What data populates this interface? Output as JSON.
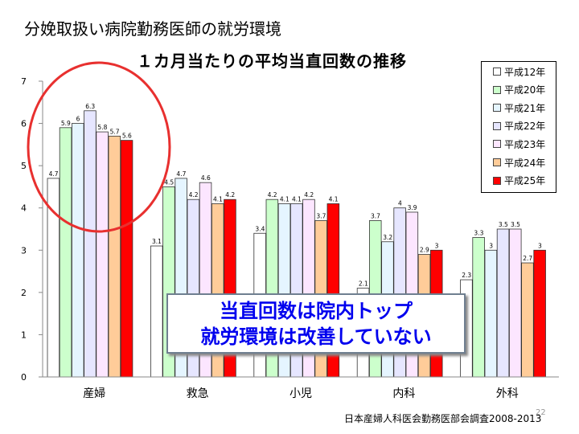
{
  "slide_title": "分娩取扱い病院勤務医師の就労環境",
  "source": "日本産婦人科医会勤務医部会調査2008-2013",
  "page_number": "22",
  "callout": {
    "line1": "当直回数は院内トップ",
    "line2": "就労環境は改善していない"
  },
  "chart_data": {
    "type": "bar",
    "title": "１カ月当たりの平均当直回数の推移",
    "xlabel": "",
    "ylabel": "",
    "ylim": [
      0,
      7
    ],
    "yticks": [
      0,
      1,
      2,
      3,
      4,
      5,
      6,
      7
    ],
    "grid": false,
    "legend_position": "top-right",
    "categories": [
      "産婦",
      "救急",
      "小児",
      "内科",
      "外科"
    ],
    "series": [
      {
        "name": "平成12年",
        "color": "#ffffff",
        "values": [
          4.7,
          3.1,
          3.4,
          2.1,
          2.3
        ]
      },
      {
        "name": "平成20年",
        "color": "#ccffcc",
        "values": [
          5.9,
          4.5,
          4.2,
          3.7,
          3.3
        ]
      },
      {
        "name": "平成21年",
        "color": "#e5f5ff",
        "values": [
          6.0,
          4.7,
          4.1,
          3.2,
          3.0
        ]
      },
      {
        "name": "平成22年",
        "color": "#e6e6ff",
        "values": [
          6.3,
          4.2,
          4.1,
          4.0,
          3.5
        ]
      },
      {
        "name": "平成23年",
        "color": "#fce6ff",
        "values": [
          5.8,
          4.6,
          4.2,
          3.9,
          3.5
        ]
      },
      {
        "name": "平成24年",
        "color": "#ffcc99",
        "values": [
          5.7,
          4.1,
          3.7,
          2.9,
          2.7
        ]
      },
      {
        "name": "平成25年",
        "color": "#ff0000",
        "values": [
          5.6,
          4.2,
          4.1,
          3.0,
          3.0
        ]
      }
    ],
    "data_labels": [
      [
        "4.7",
        "5.9",
        "6",
        "6.3",
        "5.8",
        "5.7",
        "5.6"
      ],
      [
        "3.1",
        "4.5",
        "4.7",
        "4.2",
        "4.6",
        "4.1",
        "4.2"
      ],
      [
        "3.4",
        "4.2",
        "4.1",
        "4.1",
        "4.2",
        "3.7",
        "4.1"
      ],
      [
        "2.1",
        "3.7",
        "3.2",
        "4",
        "3.9",
        "2.9",
        "3"
      ],
      [
        "2.3",
        "3.3",
        "3",
        "3.5",
        "3.5",
        "2.7",
        "3"
      ]
    ]
  }
}
